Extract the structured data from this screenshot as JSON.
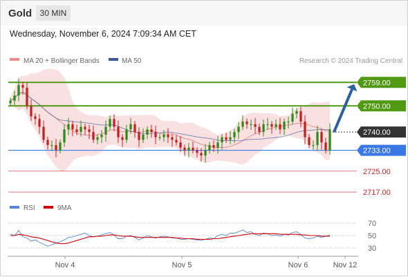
{
  "header": {
    "symbol": "Gold",
    "interval": "30 MIN",
    "datetime": "Wednesday, November 6, 2024 7:09:34 AM CET"
  },
  "legend": {
    "ma20_label": "MA 20 + Bollinger Bands",
    "ma50_label": "MA 50",
    "copyright": "Research © 2024 Trading Central"
  },
  "colors": {
    "resistance": "#4f9a12",
    "support": "#3a78e8",
    "minor": "#d12020",
    "current": "#333333",
    "candle_up": "#2e8b18",
    "candle_down": "#c81e1e",
    "bollinger": "#f5c8c8",
    "ma20": "#e07070",
    "ma50": "#3a5a9a",
    "arrow": "#2a5fa0",
    "rsi": "#5a82d8",
    "rsi_ma": "#d40000"
  },
  "chart_data": [
    {
      "type": "candlestick",
      "title": "Gold",
      "y_range": [
        2722,
        2764
      ],
      "price_levels": [
        {
          "value": 2759.0,
          "label": "2759.00",
          "kind": "resistance"
        },
        {
          "value": 2750.0,
          "label": "2750.00",
          "kind": "resistance"
        },
        {
          "value": 2740.0,
          "label": "2740.00",
          "kind": "current"
        },
        {
          "value": 2733.0,
          "label": "2733.00",
          "kind": "support"
        },
        {
          "value": 2725.0,
          "label": "2725.00",
          "kind": "minor"
        },
        {
          "value": 2717.0,
          "label": "2717.00",
          "kind": "minor"
        }
      ],
      "close_series": [
        2752,
        2754,
        2758,
        2757,
        2750,
        2746,
        2745,
        2742,
        2737,
        2735,
        2735,
        2733,
        2736,
        2741,
        2743,
        2741,
        2740,
        2742,
        2741,
        2740,
        2737,
        2738,
        2739,
        2742,
        2745,
        2742,
        2738,
        2737,
        2741,
        2743,
        2740,
        2737,
        2739,
        2741,
        2740,
        2738,
        2738,
        2739,
        2738,
        2737,
        2736,
        2734,
        2733,
        2734,
        2733,
        2732,
        2731,
        2733,
        2735,
        2734,
        2736,
        2738,
        2737,
        2738,
        2740,
        2742,
        2744,
        2743,
        2743,
        2742,
        2740,
        2743,
        2743,
        2742,
        2743,
        2741,
        2744,
        2744,
        2747,
        2748,
        2744,
        2738,
        2735,
        2735,
        2740,
        2736,
        2733,
        2741
      ],
      "forecast_arrow": {
        "from": 2740,
        "to": 2759
      },
      "x_ticks": [
        "Nov 4",
        "Nov 5",
        "Nov 6",
        "Nov 12"
      ]
    },
    {
      "type": "line",
      "title": "RSI",
      "series": [
        {
          "name": "RSI",
          "values": [
            52,
            50,
            58,
            48,
            46,
            41,
            43,
            39,
            36,
            33,
            35,
            38,
            40,
            43,
            47,
            48,
            50,
            52,
            54,
            50,
            48,
            49,
            51,
            53,
            55,
            51,
            45,
            45,
            49,
            50,
            47,
            43,
            46,
            50,
            48,
            46,
            48,
            49,
            48,
            46,
            46,
            44,
            44,
            45,
            44,
            43,
            42,
            44,
            46,
            45,
            50,
            52,
            50,
            54,
            54,
            56,
            59,
            55,
            56,
            52,
            50,
            54,
            53,
            50,
            51,
            49,
            52,
            51,
            55,
            56,
            52,
            46,
            45,
            46,
            49,
            47,
            49,
            51
          ]
        },
        {
          "name": "9MA",
          "values": [
            50,
            50,
            52,
            51,
            50,
            48,
            47,
            46,
            44,
            42,
            40,
            38,
            37,
            37,
            38,
            40,
            42,
            44,
            46,
            48,
            48,
            49,
            49,
            50,
            51,
            51,
            50,
            49,
            49,
            49,
            48,
            47,
            47,
            47,
            47,
            47,
            47,
            47,
            47,
            47,
            46,
            46,
            45,
            45,
            45,
            44,
            44,
            44,
            44,
            45,
            45,
            46,
            47,
            48,
            49,
            50,
            51,
            52,
            53,
            53,
            53,
            53,
            53,
            53,
            53,
            52,
            52,
            52,
            52,
            52,
            51,
            51,
            50,
            50,
            50,
            49,
            49,
            49
          ]
        }
      ],
      "y_ticks": [
        "70",
        "50",
        "30"
      ]
    }
  ]
}
